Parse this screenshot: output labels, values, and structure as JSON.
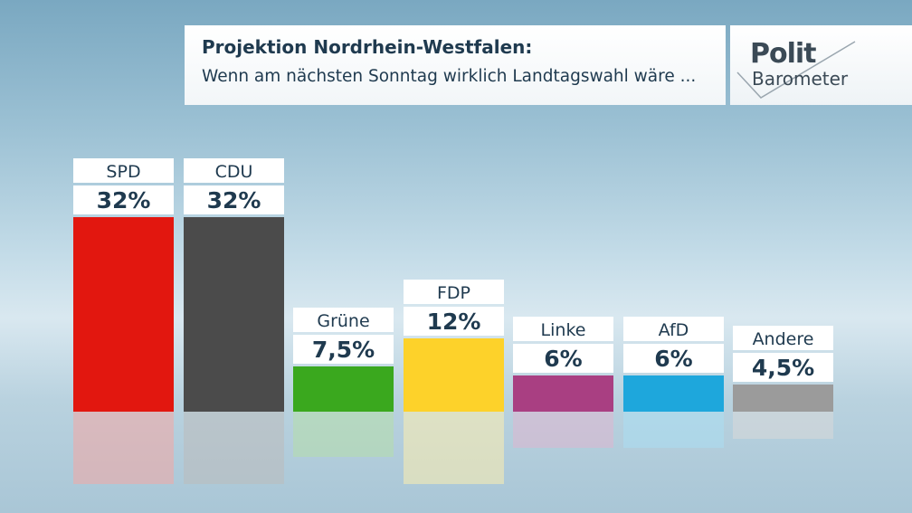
{
  "header": {
    "title": "Projektion Nordrhein-Westfalen:",
    "subtitle": "Wenn am nächsten Sonntag wirklich Landtagswahl wäre ..."
  },
  "logo": {
    "line1": "Polit",
    "line2": "Barometer"
  },
  "chart_data": {
    "type": "bar",
    "title": "Projektion Nordrhein-Westfalen:",
    "subtitle": "Wenn am nächsten Sonntag wirklich Landtagswahl wäre ...",
    "categories": [
      "SPD",
      "CDU",
      "Grüne",
      "FDP",
      "Linke",
      "AfD",
      "Andere"
    ],
    "values": [
      32,
      32,
      7.5,
      12,
      6,
      6,
      4.5
    ],
    "value_labels": [
      "32%",
      "32%",
      "7,5%",
      "12%",
      "6%",
      "6%",
      "4,5%"
    ],
    "colors": [
      "#e2170f",
      "#4b4b4b",
      "#3aa81e",
      "#fdd22a",
      "#a93f82",
      "#1ea7dc",
      "#9b9b9b"
    ],
    "unit": "%",
    "ylim": [
      0,
      32
    ],
    "grid": false,
    "legend": "none"
  }
}
